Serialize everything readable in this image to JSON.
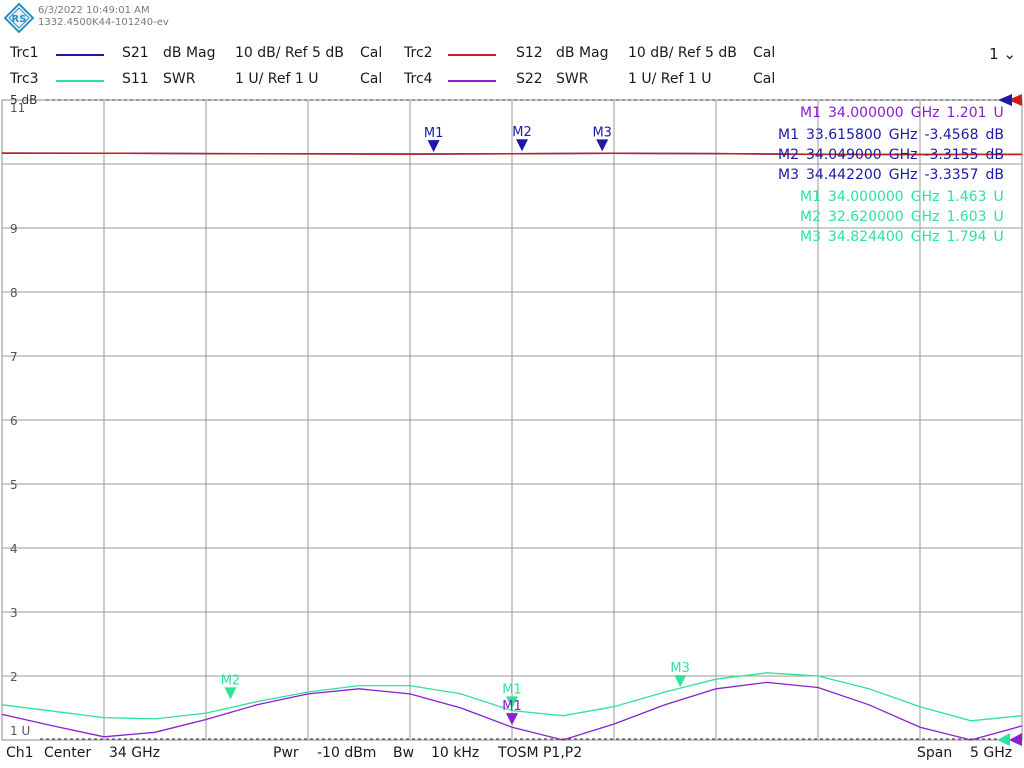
{
  "header": {
    "timestamp": "6/3/2022 10:49:01 AM",
    "instrument_id": "1332.4500K44-101240-ev",
    "channel_menu": "1",
    "traces": [
      {
        "id": "Trc1",
        "param": "S21",
        "format": "dB Mag",
        "scale": "10 dB/ Ref 5 dB",
        "cal": "Cal",
        "color": "#1a1aa6"
      },
      {
        "id": "Trc2",
        "param": "S12",
        "format": "dB Mag",
        "scale": "10 dB/ Ref 5 dB",
        "cal": "Cal",
        "color": "#c81e1e"
      },
      {
        "id": "Trc3",
        "param": "S11",
        "format": "SWR",
        "scale": "1 U/ Ref 1 U",
        "cal": "Cal",
        "color": "#2ee39a"
      },
      {
        "id": "Trc4",
        "param": "S22",
        "format": "SWR",
        "scale": "1 U/ Ref 1 U",
        "cal": "Cal",
        "color": "#8a1ed2"
      }
    ]
  },
  "footer": {
    "channel": "Ch1",
    "center_label": "Center",
    "center_value": "34 GHz",
    "pwr_label": "Pwr",
    "pwr_value": "-10 dBm",
    "bw_label": "Bw",
    "bw_value": "10 kHz",
    "cal_type": "TOSM P1,P2",
    "span_label": "Span",
    "span_value": "5 GHz"
  },
  "chart_data": {
    "type": "line",
    "x_unit": "GHz",
    "xlim": [
      31.5,
      36.5
    ],
    "y_ticks_swr": [
      "11",
      "9",
      "8",
      "7",
      "6",
      "5",
      "4",
      "3",
      "2",
      "1 U"
    ],
    "ref_label": "5 dB",
    "ylim_swr": [
      1,
      11
    ],
    "grid": true,
    "series": [
      {
        "name": "Trc1",
        "x": [
          31.5,
          32.0,
          32.5,
          33.0,
          33.5,
          34.0,
          34.5,
          35.0,
          35.5,
          36.0,
          36.5
        ],
        "y_db": [
          -3.3,
          -3.32,
          -3.38,
          -3.42,
          -3.45,
          -3.4,
          -3.33,
          -3.38,
          -3.5,
          -3.52,
          -3.5
        ]
      },
      {
        "name": "Trc2",
        "x": [
          31.5,
          32.0,
          32.5,
          33.0,
          33.5,
          34.0,
          34.5,
          35.0,
          35.5,
          36.0,
          36.5
        ],
        "y_db": [
          -3.3,
          -3.32,
          -3.37,
          -3.41,
          -3.44,
          -3.4,
          -3.33,
          -3.37,
          -3.49,
          -3.51,
          -3.5
        ]
      },
      {
        "name": "Trc3",
        "x": [
          31.5,
          31.75,
          32.0,
          32.25,
          32.5,
          32.75,
          33.0,
          33.25,
          33.5,
          33.75,
          34.0,
          34.25,
          34.5,
          34.75,
          35.0,
          35.25,
          35.5,
          35.75,
          36.0,
          36.25,
          36.5
        ],
        "y": [
          1.55,
          1.45,
          1.35,
          1.33,
          1.42,
          1.6,
          1.75,
          1.85,
          1.85,
          1.72,
          1.46,
          1.38,
          1.52,
          1.75,
          1.95,
          2.05,
          2.0,
          1.8,
          1.52,
          1.3,
          1.38
        ]
      },
      {
        "name": "Trc4",
        "x": [
          31.5,
          31.75,
          32.0,
          32.25,
          32.5,
          32.75,
          33.0,
          33.25,
          33.5,
          33.75,
          34.0,
          34.25,
          34.5,
          34.75,
          35.0,
          35.25,
          35.5,
          35.75,
          36.0,
          36.25,
          36.5
        ],
        "y": [
          1.4,
          1.22,
          1.05,
          1.12,
          1.32,
          1.55,
          1.72,
          1.8,
          1.72,
          1.5,
          1.2,
          1.0,
          1.25,
          1.55,
          1.8,
          1.9,
          1.82,
          1.55,
          1.2,
          1.0,
          1.22
        ]
      }
    ],
    "marker_readouts": [
      {
        "trace": "Trc4",
        "label": "M1",
        "freq": "34.000000",
        "unit": "GHz",
        "value": "1.201",
        "vunit": "U"
      },
      {
        "trace": "Trc1",
        "label": "M1",
        "freq": "33.615800",
        "unit": "GHz",
        "value": "-3.4568",
        "vunit": "dB"
      },
      {
        "trace": "Trc1",
        "label": "M2",
        "freq": "34.049000",
        "unit": "GHz",
        "value": "-3.3155",
        "vunit": "dB"
      },
      {
        "trace": "Trc1",
        "label": "M3",
        "freq": "34.442200",
        "unit": "GHz",
        "value": "-3.3357",
        "vunit": "dB"
      },
      {
        "trace": "Trc3",
        "label": "M1",
        "freq": "34.000000",
        "unit": "GHz",
        "value": "1.463",
        "vunit": "U"
      },
      {
        "trace": "Trc3",
        "label": "M2",
        "freq": "32.620000",
        "unit": "GHz",
        "value": "1.603",
        "vunit": "U"
      },
      {
        "trace": "Trc3",
        "label": "M3",
        "freq": "34.824400",
        "unit": "GHz",
        "value": "1.794",
        "vunit": "U"
      }
    ],
    "markers": [
      {
        "trace": "Trc1",
        "label": "M1",
        "x": 33.6158,
        "y_db": -3.4568
      },
      {
        "trace": "Trc1",
        "label": "M2",
        "x": 34.049,
        "y_db": -3.3155
      },
      {
        "trace": "Trc1",
        "label": "M3",
        "x": 34.4422,
        "y_db": -3.3357
      },
      {
        "trace": "Trc3",
        "label": "M1",
        "x": 34.0,
        "y": 1.463
      },
      {
        "trace": "Trc3",
        "label": "M2",
        "x": 32.62,
        "y": 1.603
      },
      {
        "trace": "Trc3",
        "label": "M3",
        "x": 34.8244,
        "y": 1.794
      },
      {
        "trace": "Trc4",
        "label": "M1",
        "x": 34.0,
        "y": 1.201
      }
    ]
  }
}
